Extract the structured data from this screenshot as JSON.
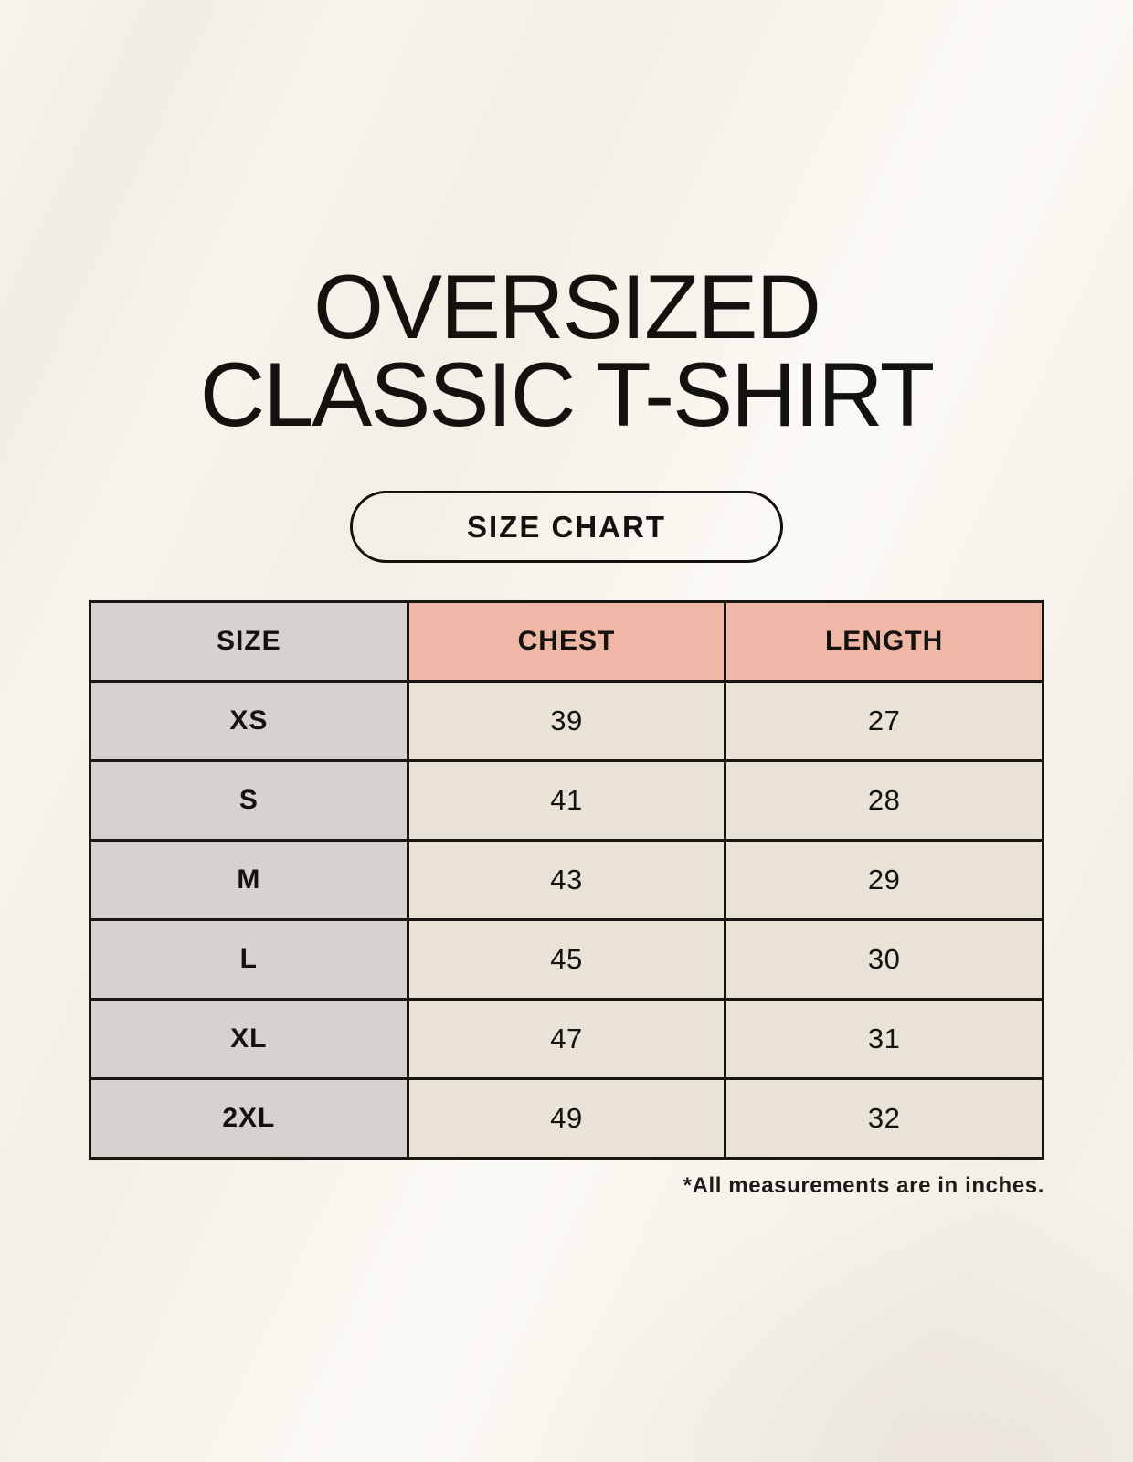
{
  "page": {
    "title_line1": "OVERSIZED",
    "title_line2": "CLASSIC T-SHIRT",
    "size_chart_button_label": "SIZE CHART",
    "footnote": "*All measurements are in inches."
  },
  "chart_data": {
    "type": "table",
    "title": "OVERSIZED CLASSIC T-SHIRT",
    "subtitle": "SIZE CHART",
    "columns": [
      "SIZE",
      "CHEST",
      "LENGTH"
    ],
    "rows": [
      [
        "XS",
        39,
        27
      ],
      [
        "S",
        41,
        28
      ],
      [
        "M",
        43,
        29
      ],
      [
        "L",
        45,
        30
      ],
      [
        "XL",
        47,
        31
      ],
      [
        "2XL",
        49,
        32
      ]
    ],
    "units": "inches",
    "note": "*All measurements are in inches."
  },
  "colors": {
    "page_background": "#f8f4ec",
    "header_accent_pink": "#eeb7a6",
    "size_column_gray": "#d8d2ce",
    "data_cell_cream": "#e9e2d6",
    "table_border": "#1a1713",
    "text": "#14120f"
  }
}
